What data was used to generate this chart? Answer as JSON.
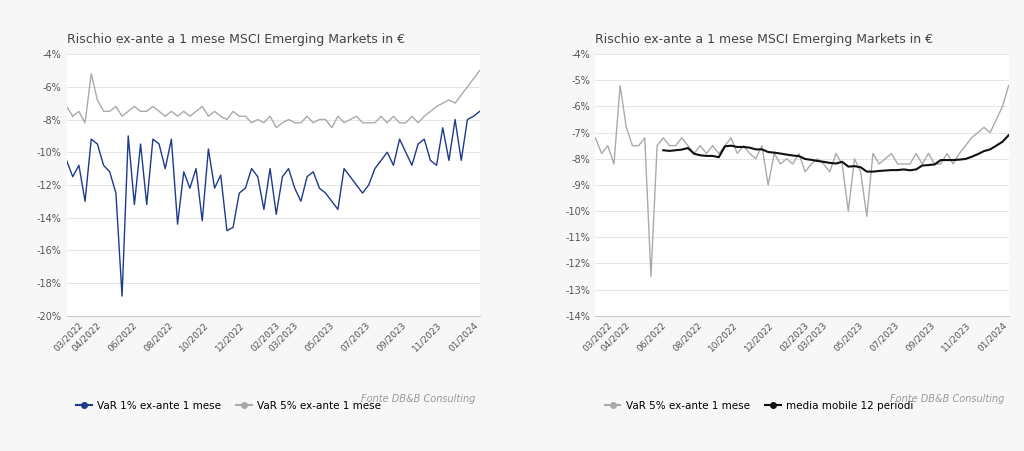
{
  "title": "Rischio ex-ante a 1 mese MSCI Emerging Markets in €",
  "background_color": "#f7f7f7",
  "chart_bg": "#ffffff",
  "x_labels": [
    "03/2022",
    "04/2022",
    "06/2022",
    "08/2022",
    "10/2022",
    "12/2022",
    "02/2023",
    "03/2023",
    "05/2023",
    "07/2023",
    "09/2023",
    "11/2023",
    "01/2024"
  ],
  "left_ylim": [
    -20,
    -4
  ],
  "left_yticks": [
    -20,
    -18,
    -16,
    -14,
    -12,
    -10,
    -8,
    -6,
    -4
  ],
  "left_ytick_labels": [
    "-20%",
    "-18%",
    "-16%",
    "-14%",
    "-12%",
    "-10%",
    "-8%",
    "-6%",
    "-4%"
  ],
  "right_ylim": [
    -14,
    -4
  ],
  "right_yticks": [
    -14,
    -13,
    -12,
    -11,
    -10,
    -9,
    -8,
    -7,
    -6,
    -5,
    -4
  ],
  "right_ytick_labels": [
    "-14%",
    "-13%",
    "-12%",
    "-11%",
    "-10%",
    "-9%",
    "-8%",
    "-7%",
    "-6%",
    "-5%",
    "-4%"
  ],
  "var1_color": "#1f3a8a",
  "var5_color": "#aaaaaa",
  "mobile_color": "#111111",
  "legend1_labels": [
    "VaR 1% ex-ante 1 mese",
    "VaR 5% ex-ante 1 mese"
  ],
  "legend2_labels": [
    "VaR 5% ex-ante 1 mese",
    "media mobile 12 periodi"
  ],
  "fonte_text": "Fonte DB&B Consulting",
  "var1_values": [
    -10.5,
    -11.5,
    -10.8,
    -13.0,
    -9.2,
    -9.5,
    -10.8,
    -11.2,
    -12.5,
    -18.8,
    -9.0,
    -13.2,
    -9.5,
    -13.2,
    -9.2,
    -9.5,
    -11.0,
    -9.2,
    -14.4,
    -11.2,
    -12.2,
    -11.0,
    -14.2,
    -9.8,
    -12.2,
    -11.4,
    -14.8,
    -14.6,
    -12.5,
    -12.2,
    -11.0,
    -11.5,
    -13.5,
    -11.0,
    -13.8,
    -11.5,
    -11.0,
    -12.2,
    -13.0,
    -11.5,
    -11.2,
    -12.2,
    -12.5,
    -13.0,
    -13.5,
    -11.0,
    -11.5,
    -12.0,
    -12.5,
    -12.0,
    -11.0,
    -10.5,
    -10.0,
    -10.8,
    -9.2,
    -10.0,
    -10.8,
    -9.5,
    -9.2,
    -10.5,
    -10.8,
    -8.5,
    -10.5,
    -8.0,
    -10.5,
    -8.0,
    -7.8,
    -7.5
  ],
  "var5_values": [
    -7.2,
    -7.8,
    -7.5,
    -8.2,
    -5.2,
    -6.8,
    -7.5,
    -7.5,
    -7.2,
    -7.8,
    -7.5,
    -7.2,
    -7.5,
    -7.5,
    -7.2,
    -7.5,
    -7.8,
    -7.5,
    -7.8,
    -7.5,
    -7.8,
    -7.5,
    -7.2,
    -7.8,
    -7.5,
    -7.8,
    -8.0,
    -7.5,
    -7.8,
    -7.8,
    -8.2,
    -8.0,
    -8.2,
    -7.8,
    -8.5,
    -8.2,
    -8.0,
    -8.2,
    -8.2,
    -7.8,
    -8.2,
    -8.0,
    -8.0,
    -8.5,
    -7.8,
    -8.2,
    -8.0,
    -7.8,
    -8.2,
    -8.2,
    -8.2,
    -7.8,
    -8.2,
    -7.8,
    -8.2,
    -8.2,
    -7.8,
    -8.2,
    -7.8,
    -7.5,
    -7.2,
    -7.0,
    -6.8,
    -7.0,
    -6.5,
    -6.0,
    -5.5,
    -5.0
  ],
  "var5_right_values": [
    -7.2,
    -7.8,
    -7.5,
    -8.2,
    -5.2,
    -6.8,
    -7.5,
    -7.5,
    -7.2,
    -12.5,
    -7.5,
    -7.2,
    -7.5,
    -7.5,
    -7.2,
    -7.5,
    -7.8,
    -7.5,
    -7.8,
    -7.5,
    -7.8,
    -7.5,
    -7.2,
    -7.8,
    -7.5,
    -7.8,
    -8.0,
    -7.5,
    -9.0,
    -7.8,
    -8.2,
    -8.0,
    -8.2,
    -7.8,
    -8.5,
    -8.2,
    -8.0,
    -8.2,
    -8.5,
    -7.8,
    -8.2,
    -10.0,
    -8.0,
    -8.5,
    -10.2,
    -7.8,
    -8.2,
    -8.0,
    -7.8,
    -8.2,
    -8.2,
    -8.2,
    -7.8,
    -8.2,
    -7.8,
    -8.2,
    -8.2,
    -7.8,
    -8.2,
    -7.8,
    -7.5,
    -7.2,
    -7.0,
    -6.8,
    -7.0,
    -6.5,
    -6.0,
    -5.2
  ]
}
